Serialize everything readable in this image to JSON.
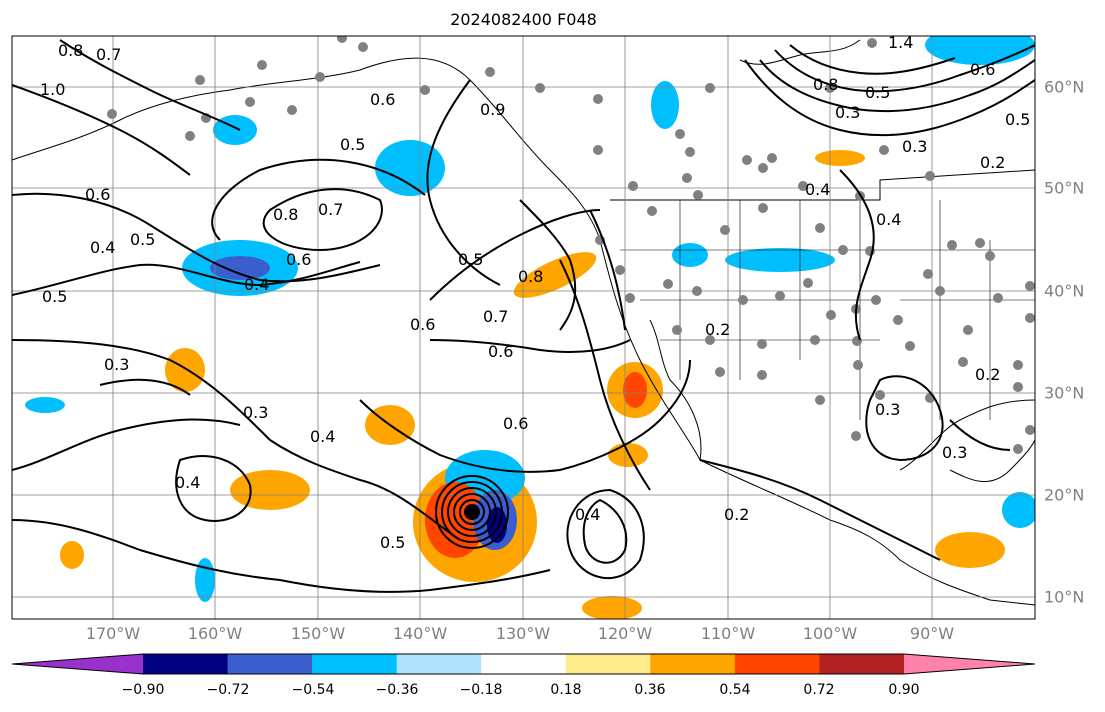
{
  "title": "2024082400 F048",
  "longitude_labels": [
    "170°W",
    "160°W",
    "150°W",
    "140°W",
    "130°W",
    "120°W",
    "110°W",
    "100°W",
    "90°W"
  ],
  "latitude_labels": [
    "60°N",
    "50°N",
    "40°N",
    "30°N",
    "20°N",
    "10°N"
  ],
  "colorbar": {
    "tick_labels": [
      "−0.90",
      "−0.72",
      "−0.54",
      "−0.36",
      "−0.18",
      "0.18",
      "0.36",
      "0.54",
      "0.72",
      "0.90"
    ],
    "colors": [
      "#9932cc",
      "#000080",
      "#3a5fcd",
      "#00bfff",
      "#b0e2ff",
      "#ffffff",
      "#ffec8b",
      "#ffa500",
      "#ff4500",
      "#b22222",
      "#ff82ab"
    ],
    "extend": "both"
  },
  "contour_labels": [
    "0.8",
    "1.0",
    "0.7",
    "0.6",
    "0.5",
    "0.4",
    "0.3",
    "0.2",
    "0.9",
    "1.4",
    "0.5",
    "0.6",
    "0.7",
    "0.8",
    "0.4",
    "0.6",
    "0.5",
    "0.3",
    "0.4",
    "0.5",
    "0.6",
    "0.6",
    "0.7",
    "0.5",
    "0.8",
    "0.6",
    "0.3",
    "0.4",
    "0.2",
    "0.2",
    "0.3",
    "0.3",
    "0.4",
    "0.2",
    "0.5",
    "0.4",
    "0.6",
    "0.5",
    "0.4",
    "0.3",
    "0.8"
  ],
  "storm_marker": "hurricane-center"
}
